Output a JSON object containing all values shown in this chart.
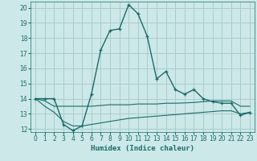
{
  "xlabel": "Humidex (Indice chaleur)",
  "bg_color": "#cce8e8",
  "grid_color": "#aacccc",
  "line_color": "#1a6b6b",
  "xlim": [
    -0.5,
    23.5
  ],
  "ylim": [
    11.8,
    20.4
  ],
  "yticks": [
    12,
    13,
    14,
    15,
    16,
    17,
    18,
    19,
    20
  ],
  "xticks": [
    0,
    1,
    2,
    3,
    4,
    5,
    6,
    7,
    8,
    9,
    10,
    11,
    12,
    13,
    14,
    15,
    16,
    17,
    18,
    19,
    20,
    21,
    22,
    23
  ],
  "main_line": [
    [
      0,
      14.0
    ],
    [
      1,
      14.0
    ],
    [
      2,
      14.0
    ],
    [
      3,
      12.3
    ],
    [
      4,
      11.9
    ],
    [
      5,
      12.2
    ],
    [
      6,
      14.3
    ],
    [
      7,
      17.2
    ],
    [
      8,
      18.5
    ],
    [
      9,
      18.6
    ],
    [
      10,
      20.2
    ],
    [
      11,
      19.6
    ],
    [
      12,
      18.1
    ],
    [
      13,
      15.3
    ],
    [
      14,
      15.8
    ],
    [
      15,
      14.6
    ],
    [
      16,
      14.3
    ],
    [
      17,
      14.6
    ],
    [
      18,
      14.0
    ],
    [
      19,
      13.8
    ],
    [
      20,
      13.7
    ],
    [
      21,
      13.7
    ],
    [
      22,
      12.9
    ],
    [
      23,
      13.1
    ]
  ],
  "line2": [
    [
      0,
      14.0
    ],
    [
      1,
      13.85
    ],
    [
      2,
      13.5
    ],
    [
      3,
      13.5
    ],
    [
      4,
      13.5
    ],
    [
      5,
      13.5
    ],
    [
      6,
      13.5
    ],
    [
      7,
      13.55
    ],
    [
      8,
      13.6
    ],
    [
      9,
      13.6
    ],
    [
      10,
      13.6
    ],
    [
      11,
      13.65
    ],
    [
      12,
      13.65
    ],
    [
      13,
      13.65
    ],
    [
      14,
      13.7
    ],
    [
      15,
      13.7
    ],
    [
      16,
      13.72
    ],
    [
      17,
      13.75
    ],
    [
      18,
      13.8
    ],
    [
      19,
      13.85
    ],
    [
      20,
      13.85
    ],
    [
      21,
      13.85
    ],
    [
      22,
      13.5
    ],
    [
      23,
      13.5
    ]
  ],
  "line3": [
    [
      0,
      14.0
    ],
    [
      1,
      13.5
    ],
    [
      2,
      13.1
    ],
    [
      3,
      12.5
    ],
    [
      4,
      12.2
    ],
    [
      5,
      12.2
    ],
    [
      6,
      12.3
    ],
    [
      7,
      12.4
    ],
    [
      8,
      12.5
    ],
    [
      9,
      12.6
    ],
    [
      10,
      12.7
    ],
    [
      11,
      12.75
    ],
    [
      12,
      12.8
    ],
    [
      13,
      12.85
    ],
    [
      14,
      12.9
    ],
    [
      15,
      12.95
    ],
    [
      16,
      13.0
    ],
    [
      17,
      13.05
    ],
    [
      18,
      13.1
    ],
    [
      19,
      13.15
    ],
    [
      20,
      13.2
    ],
    [
      21,
      13.2
    ],
    [
      22,
      13.0
    ],
    [
      23,
      13.1
    ]
  ]
}
